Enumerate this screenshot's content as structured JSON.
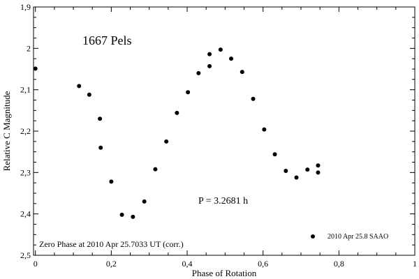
{
  "chart_data": {
    "type": "scatter",
    "title": "1667 Pels",
    "xlabel": "Phase of Rotation",
    "ylabel": "Relative C Magnitude",
    "xlim": [
      -0.005,
      1.0
    ],
    "ylim": [
      1.9,
      2.5
    ],
    "y_inverted": true,
    "grid": false,
    "x_ticks": [
      {
        "value": 0,
        "label": "0"
      },
      {
        "value": 0.2,
        "label": "0,2"
      },
      {
        "value": 0.4,
        "label": "0,4"
      },
      {
        "value": 0.6,
        "label": "0,6"
      },
      {
        "value": 0.8,
        "label": "0,8"
      },
      {
        "value": 1.0,
        "label": "1"
      }
    ],
    "y_ticks": [
      {
        "value": 1.9,
        "label": "1,9"
      },
      {
        "value": 2.0,
        "label": "2"
      },
      {
        "value": 2.1,
        "label": "2,1"
      },
      {
        "value": 2.2,
        "label": "2,2"
      },
      {
        "value": 2.3,
        "label": "2,3"
      },
      {
        "value": 2.4,
        "label": "2,4"
      },
      {
        "value": 2.5,
        "label": "2,5"
      }
    ],
    "annotations": {
      "period": "P = 3.2681 h",
      "zero_phase": "Zero Phase at 2010 Apr 25.7033 UT (corr.)"
    },
    "legend": {
      "position": "bottom-right",
      "label": "2010 Apr 25.8 SAAO"
    },
    "series": [
      {
        "name": "2010 Apr 25.8 SAAO",
        "points": [
          [
            0.0,
            2.049
          ],
          [
            0.115,
            2.091
          ],
          [
            0.142,
            2.112
          ],
          [
            0.17,
            2.17
          ],
          [
            0.172,
            2.24
          ],
          [
            0.2,
            2.322
          ],
          [
            0.228,
            2.402
          ],
          [
            0.257,
            2.407
          ],
          [
            0.287,
            2.37
          ],
          [
            0.316,
            2.292
          ],
          [
            0.345,
            2.225
          ],
          [
            0.373,
            2.156
          ],
          [
            0.402,
            2.106
          ],
          [
            0.43,
            2.06
          ],
          [
            0.459,
            2.014
          ],
          [
            0.459,
            2.043
          ],
          [
            0.488,
            2.003
          ],
          [
            0.516,
            2.025
          ],
          [
            0.545,
            2.057
          ],
          [
            0.574,
            2.122
          ],
          [
            0.603,
            2.196
          ],
          [
            0.631,
            2.256
          ],
          [
            0.66,
            2.296
          ],
          [
            0.688,
            2.312
          ],
          [
            0.717,
            2.293
          ],
          [
            0.745,
            2.283
          ],
          [
            0.745,
            2.3
          ]
        ]
      }
    ]
  }
}
